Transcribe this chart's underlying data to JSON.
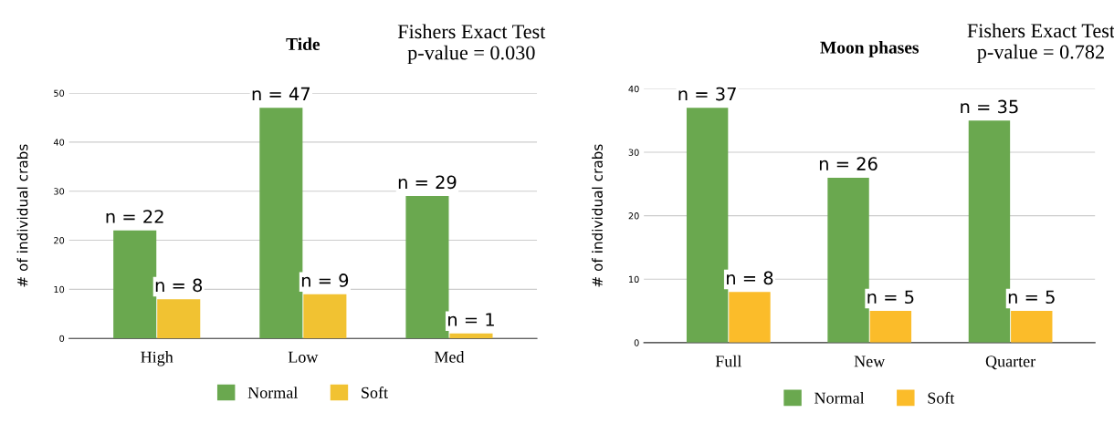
{
  "chart_data": [
    {
      "type": "bar",
      "title": "Tide",
      "ylabel": "# of individual crabs",
      "categories": [
        "High",
        "Low",
        "Med"
      ],
      "series": [
        {
          "name": "Normal",
          "color": "#6aa84f",
          "values": [
            22,
            47,
            29
          ],
          "value_labels": [
            "n = 22",
            "n = 47",
            "n = 29"
          ]
        },
        {
          "name": "Soft",
          "color": "#f1c232",
          "values": [
            8,
            9,
            1
          ],
          "value_labels": [
            "n = 8",
            "n = 9",
            "n = 1"
          ]
        }
      ],
      "ylim": [
        0,
        50
      ],
      "yticks": [
        0,
        10,
        20,
        30,
        40,
        50
      ],
      "grid": "y",
      "legend": "bottom",
      "annotations": [
        "Fishers Exact Test\np-value = 0.030"
      ]
    },
    {
      "type": "bar",
      "title": "Moon phases",
      "ylabel": "# of individual crabs",
      "categories": [
        "Full",
        "New",
        "Quarter"
      ],
      "series": [
        {
          "name": "Normal",
          "color": "#6aa84f",
          "values": [
            37,
            26,
            35
          ],
          "value_labels": [
            "n = 37",
            "n = 26",
            "n = 35"
          ]
        },
        {
          "name": "Soft",
          "color": "#fbbc2a",
          "values": [
            8,
            5,
            5
          ],
          "value_labels": [
            "n = 8",
            "n = 5",
            "n = 5"
          ]
        }
      ],
      "ylim": [
        0,
        40
      ],
      "yticks": [
        0,
        10,
        20,
        30,
        40
      ],
      "grid": "y",
      "legend": "bottom",
      "annotations": [
        "Fishers Exact Test\np-value = 0.782"
      ]
    }
  ]
}
